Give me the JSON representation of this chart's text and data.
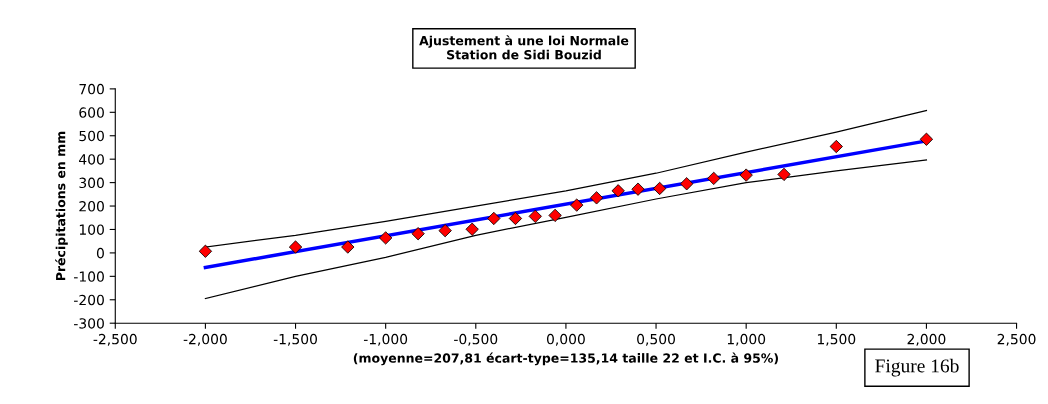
{
  "chart_data": {
    "type": "scatter",
    "title": "Ajustement à une loi Normale\nStation de Sidi Bouzid",
    "ylabel": "Précipitations en mm",
    "xlabel": "(moyenne=207,81 écart-type=135,14 taille 22 et I.C. à 95%)",
    "annotations": [
      "Figure 16b"
    ],
    "xlim": [
      -2.5,
      2.5
    ],
    "ylim": [
      -300,
      700
    ],
    "xticks": [
      {
        "value": -2.5,
        "label": "-2,500"
      },
      {
        "value": -2,
        "label": "-2,000"
      },
      {
        "value": -1.5,
        "label": "-1,500"
      },
      {
        "value": -1,
        "label": "-1,000"
      },
      {
        "value": -0.5,
        "label": "-0,500"
      },
      {
        "value": 0,
        "label": "0,000"
      },
      {
        "value": 0.5,
        "label": "0,500"
      },
      {
        "value": 1,
        "label": "1,000"
      },
      {
        "value": 1.5,
        "label": "1,500"
      },
      {
        "value": 2,
        "label": "2,000"
      },
      {
        "value": 2.5,
        "label": "2,500"
      }
    ],
    "yticks": [
      -300,
      -200,
      -100,
      0,
      100,
      200,
      300,
      400,
      500,
      600,
      700
    ],
    "grid": false,
    "legend": false,
    "series": [
      {
        "type": "line",
        "color": "#000000",
        "x": [
          -2,
          -1.5,
          -1,
          -0.5,
          0,
          0.5,
          1,
          1.5,
          2
        ],
        "values": [
          25,
          75,
          135,
          200,
          265,
          340,
          430,
          515,
          608
        ]
      },
      {
        "type": "line",
        "color": "#000000",
        "x": [
          -2,
          -1.5,
          -1,
          -0.5,
          0,
          0.5,
          1,
          1.5,
          2
        ],
        "values": [
          -195,
          -100,
          -19,
          75,
          152,
          230,
          300,
          350,
          397
        ]
      },
      {
        "type": "line",
        "color": "#0000ff",
        "x": [
          -2,
          2
        ],
        "values": [
          -62,
          478
        ]
      },
      {
        "color": "#ff0000",
        "marker": "diamond",
        "x": [
          -2.0,
          -1.5,
          -1.21,
          -1.0,
          -0.82,
          -0.67,
          -0.52,
          -0.4,
          -0.28,
          -0.17,
          -0.06,
          0.06,
          0.17,
          0.29,
          0.4,
          0.52,
          0.67,
          0.82,
          1.0,
          1.21,
          1.5,
          2.0
        ],
        "values": [
          7,
          25,
          25,
          64,
          82,
          95,
          101,
          147,
          147,
          156,
          160,
          204,
          235,
          265,
          272,
          275,
          295,
          318,
          332,
          335,
          454,
          485
        ]
      }
    ]
  }
}
